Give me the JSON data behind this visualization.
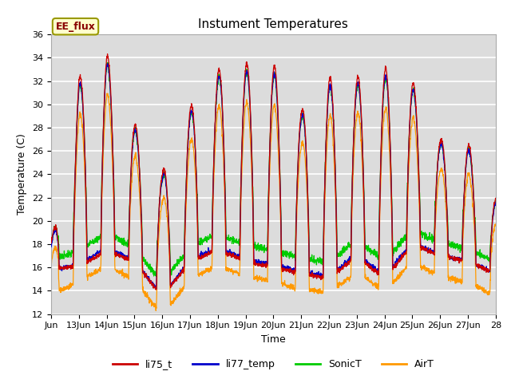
{
  "title": "Instument Temperatures",
  "xlabel": "Time",
  "ylabel": "Temperature (C)",
  "ylim": [
    12,
    36
  ],
  "yticks": [
    12,
    14,
    16,
    18,
    20,
    22,
    24,
    26,
    28,
    30,
    32,
    34,
    36
  ],
  "xtick_labels": [
    "Jun",
    "13Jun",
    "14Jun",
    "15Jun",
    "16Jun",
    "17Jun",
    "18Jun",
    "19Jun",
    "20Jun",
    "21Jun",
    "22Jun",
    "23Jun",
    "24Jun",
    "25Jun",
    "26Jun",
    "27Jun",
    "28"
  ],
  "annotation_text": "EE_flux",
  "series_colors": {
    "li75_t": "#cc0000",
    "li77_temp": "#0000cc",
    "SonicT": "#00cc00",
    "AirT": "#ff9900"
  },
  "plot_bg": "#dcdcdc",
  "fig_bg": "#ffffff",
  "grid_color": "#ffffff",
  "title_fontsize": 11,
  "axis_fontsize": 9,
  "tick_fontsize": 8
}
